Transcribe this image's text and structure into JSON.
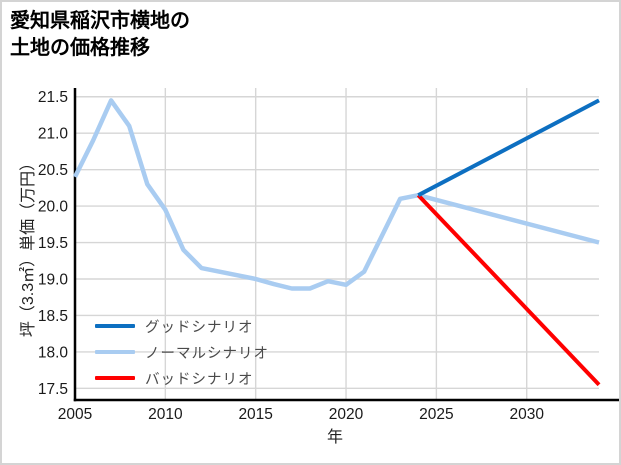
{
  "title": {
    "line1": "愛知県稲沢市横地の",
    "line2": "土地の価格推移"
  },
  "colors": {
    "good": "#0d6fc1",
    "normal": "#a9ccf1",
    "bad": "#ff0000",
    "grid": "#d6d6d6",
    "axis": "#000000",
    "tick_text": "#1a1a1a",
    "legend_text": "#4a4a4a",
    "frame_border": "#d4d4d4",
    "background": "#ffffff"
  },
  "chart_data": {
    "type": "line",
    "title": "愛知県稲沢市横地の 土地の価格推移",
    "xlabel": "年",
    "ylabel": "坪（3.3㎡）単価（万円）",
    "x_ticks": [
      2005,
      2010,
      2015,
      2020,
      2025,
      2030
    ],
    "y_ticks": [
      17.5,
      18.0,
      18.5,
      19.0,
      19.5,
      20.0,
      20.5,
      21.0,
      21.5
    ],
    "xlim": [
      2005,
      2034
    ],
    "ylim": [
      17.34,
      21.62
    ],
    "grid": true,
    "legend_position": "inside-bottom-left",
    "series": [
      {
        "name": "グッドシナリオ",
        "color": "#0d6fc1",
        "width": 4,
        "points": [
          [
            2024,
            20.15
          ],
          [
            2034,
            21.45
          ]
        ]
      },
      {
        "name": "ノーマルシナリオ",
        "color": "#a9ccf1",
        "width": 4.5,
        "points": [
          [
            2005,
            20.4
          ],
          [
            2006,
            20.9
          ],
          [
            2007,
            21.45
          ],
          [
            2008,
            21.1
          ],
          [
            2009,
            20.3
          ],
          [
            2010,
            19.95
          ],
          [
            2011,
            19.4
          ],
          [
            2012,
            19.15
          ],
          [
            2013,
            19.1
          ],
          [
            2014,
            19.05
          ],
          [
            2015,
            19.0
          ],
          [
            2016,
            18.93
          ],
          [
            2017,
            18.87
          ],
          [
            2018,
            18.87
          ],
          [
            2019,
            18.97
          ],
          [
            2020,
            18.92
          ],
          [
            2021,
            19.1
          ],
          [
            2022,
            19.6
          ],
          [
            2023,
            20.1
          ],
          [
            2024,
            20.15
          ],
          [
            2034,
            19.5
          ]
        ]
      },
      {
        "name": "バッドシナリオ",
        "color": "#ff0000",
        "width": 4,
        "points": [
          [
            2024,
            20.15
          ],
          [
            2034,
            17.55
          ]
        ]
      }
    ]
  }
}
